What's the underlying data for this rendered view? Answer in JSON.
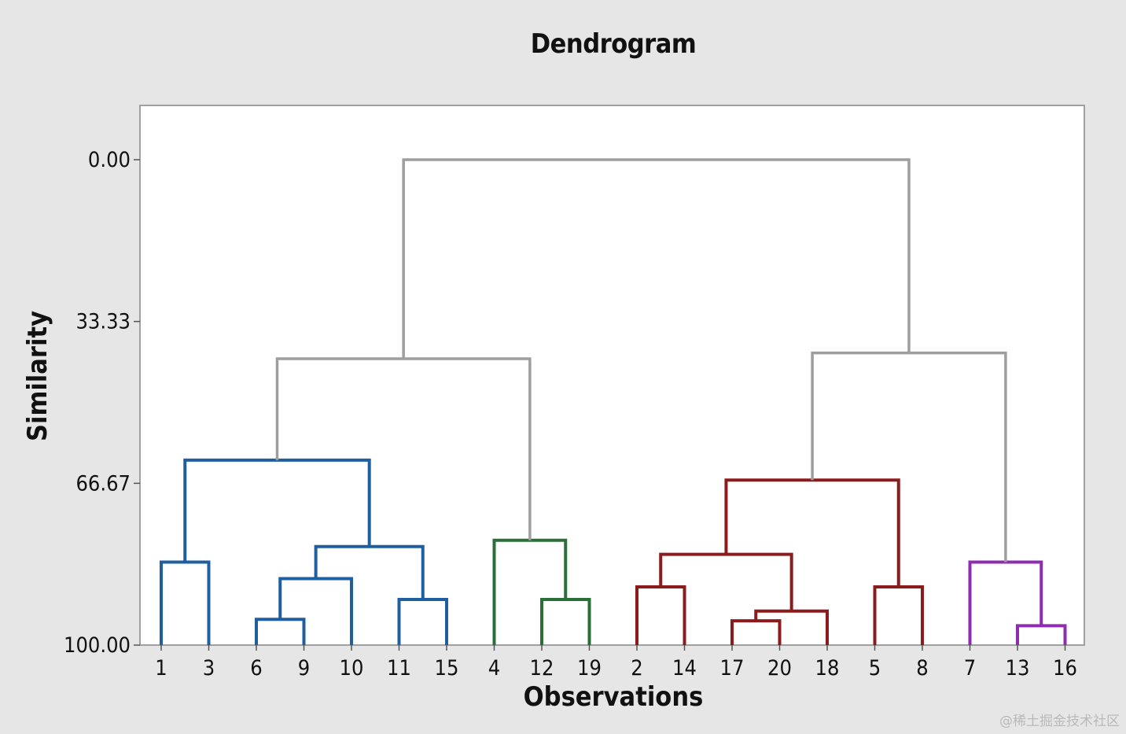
{
  "chart_data": {
    "type": "dendrogram",
    "title": "Dendrogram",
    "xlabel": "Observations",
    "ylabel": "Similarity",
    "y_ticks": [
      "0.00",
      "33.33",
      "66.67",
      "100.00"
    ],
    "ylim": [
      100,
      0
    ],
    "leaves": [
      "1",
      "3",
      "6",
      "9",
      "10",
      "11",
      "15",
      "4",
      "12",
      "19",
      "2",
      "14",
      "17",
      "20",
      "18",
      "5",
      "8",
      "7",
      "13",
      "16"
    ],
    "colors": {
      "cluster_blue": "#1f5fa0",
      "cluster_green": "#2a6e38",
      "cluster_red": "#8c1c1c",
      "cluster_purple": "#8f2cb0",
      "upper_links": "#9e9e9e"
    },
    "links": [
      {
        "left": "1",
        "right": "3",
        "similarity": 82.9,
        "color": "cluster_blue"
      },
      {
        "left": "6",
        "right": "9",
        "similarity": 94.7,
        "color": "cluster_blue"
      },
      {
        "left": "6+9",
        "right": "10",
        "similarity": 86.3,
        "color": "cluster_blue"
      },
      {
        "left": "11",
        "right": "15",
        "similarity": 90.6,
        "color": "cluster_blue"
      },
      {
        "left": "6+9+10",
        "right": "11+15",
        "similarity": 79.7,
        "color": "cluster_blue"
      },
      {
        "left": "1+3",
        "right": "6+9+10+11+15",
        "similarity": 61.9,
        "color": "cluster_blue"
      },
      {
        "left": "12",
        "right": "19",
        "similarity": 90.6,
        "color": "cluster_green"
      },
      {
        "left": "4",
        "right": "12+19",
        "similarity": 78.4,
        "color": "cluster_green"
      },
      {
        "left": "1…15",
        "right": "4+12+19",
        "similarity": 41.0,
        "color": "upper_links"
      },
      {
        "left": "2",
        "right": "14",
        "similarity": 88.0,
        "color": "cluster_red"
      },
      {
        "left": "17",
        "right": "20",
        "similarity": 95.0,
        "color": "cluster_red"
      },
      {
        "left": "17+20",
        "right": "18",
        "similarity": 93.0,
        "color": "cluster_red"
      },
      {
        "left": "2+14",
        "right": "17+20+18",
        "similarity": 81.3,
        "color": "cluster_red"
      },
      {
        "left": "5",
        "right": "8",
        "similarity": 88.0,
        "color": "cluster_red"
      },
      {
        "left": "2…18",
        "right": "5+8",
        "similarity": 66.0,
        "color": "cluster_red"
      },
      {
        "left": "13",
        "right": "16",
        "similarity": 96.0,
        "color": "cluster_purple"
      },
      {
        "left": "7",
        "right": "13+16",
        "similarity": 82.9,
        "color": "cluster_purple"
      },
      {
        "left": "2…8",
        "right": "7+13+16",
        "similarity": 39.8,
        "color": "upper_links"
      },
      {
        "left": "1…19",
        "right": "2…16",
        "similarity": 0.0,
        "color": "upper_links"
      }
    ]
  },
  "watermark": "@稀土掘金技术社区"
}
